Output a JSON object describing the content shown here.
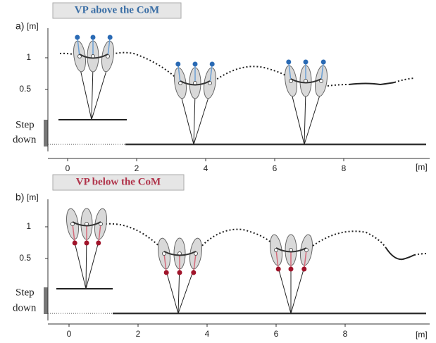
{
  "panels": [
    {
      "label": "a)",
      "title": "VP above the CoM",
      "y_unit": "[m]",
      "x_unit": "[m]",
      "yticks": [
        0.5,
        1
      ],
      "xticks": [
        0,
        2,
        4,
        6,
        8
      ],
      "step_label": [
        "Step",
        "down"
      ]
    },
    {
      "label": "b)",
      "title": "VP below the CoM",
      "y_unit": "[m]",
      "x_unit": "[m]",
      "yticks": [
        0.5,
        1
      ],
      "xticks": [
        0,
        2,
        4,
        6,
        8
      ],
      "step_label": [
        "Step",
        "down"
      ]
    }
  ]
}
